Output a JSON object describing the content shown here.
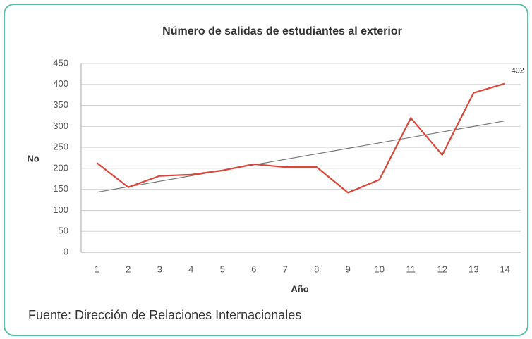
{
  "chart_data": {
    "type": "line",
    "title": "Número de salidas de estudiantes al exterior",
    "x_label": "Año",
    "y_label": "No",
    "source": "Fuente: Dirección de Relaciones Internacionales",
    "categories": [
      "1",
      "2",
      "3",
      "4",
      "5",
      "6",
      "7",
      "8",
      "9",
      "10",
      "11",
      "12",
      "13",
      "14"
    ],
    "values": [
      213,
      155,
      182,
      185,
      195,
      210,
      203,
      203,
      142,
      173,
      320,
      232,
      380,
      402
    ],
    "color": "#d9463a",
    "trendline": {
      "start": 143,
      "end": 313,
      "color": "#777777"
    },
    "ylim": [
      0,
      450
    ],
    "yticks": [
      0,
      50,
      100,
      150,
      200,
      250,
      300,
      350,
      400,
      450
    ],
    "grid": true
  }
}
